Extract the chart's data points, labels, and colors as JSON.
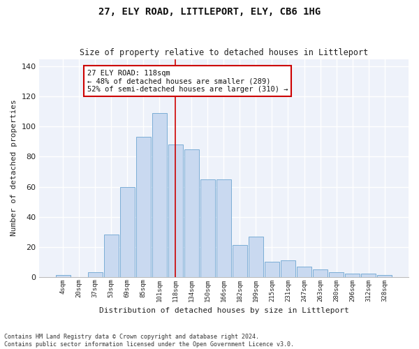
{
  "title": "27, ELY ROAD, LITTLEPORT, ELY, CB6 1HG",
  "subtitle": "Size of property relative to detached houses in Littleport",
  "xlabel": "Distribution of detached houses by size in Littleport",
  "ylabel": "Number of detached properties",
  "bar_color": "#c9d9f0",
  "bar_edge_color": "#7aadd6",
  "background_color": "#eef2fa",
  "grid_color": "#ffffff",
  "categories": [
    "4sqm",
    "20sqm",
    "37sqm",
    "53sqm",
    "69sqm",
    "85sqm",
    "101sqm",
    "118sqm",
    "134sqm",
    "150sqm",
    "166sqm",
    "182sqm",
    "199sqm",
    "215sqm",
    "231sqm",
    "247sqm",
    "263sqm",
    "280sqm",
    "296sqm",
    "312sqm",
    "328sqm"
  ],
  "values": [
    1,
    0,
    3,
    28,
    60,
    93,
    109,
    88,
    85,
    65,
    65,
    21,
    27,
    10,
    11,
    7,
    5,
    3,
    2,
    2,
    1
  ],
  "ylim": [
    0,
    145
  ],
  "yticks": [
    0,
    20,
    40,
    60,
    80,
    100,
    120,
    140
  ],
  "property_line_index": 7,
  "annotation_text": "27 ELY ROAD: 118sqm\n← 48% of detached houses are smaller (289)\n52% of semi-detached houses are larger (310) →",
  "footer_text": "Contains HM Land Registry data © Crown copyright and database right 2024.\nContains public sector information licensed under the Open Government Licence v3.0.",
  "annotation_box_color": "#ffffff",
  "annotation_box_edge_color": "#cc0000",
  "vline_color": "#cc0000",
  "fig_bg": "#ffffff"
}
